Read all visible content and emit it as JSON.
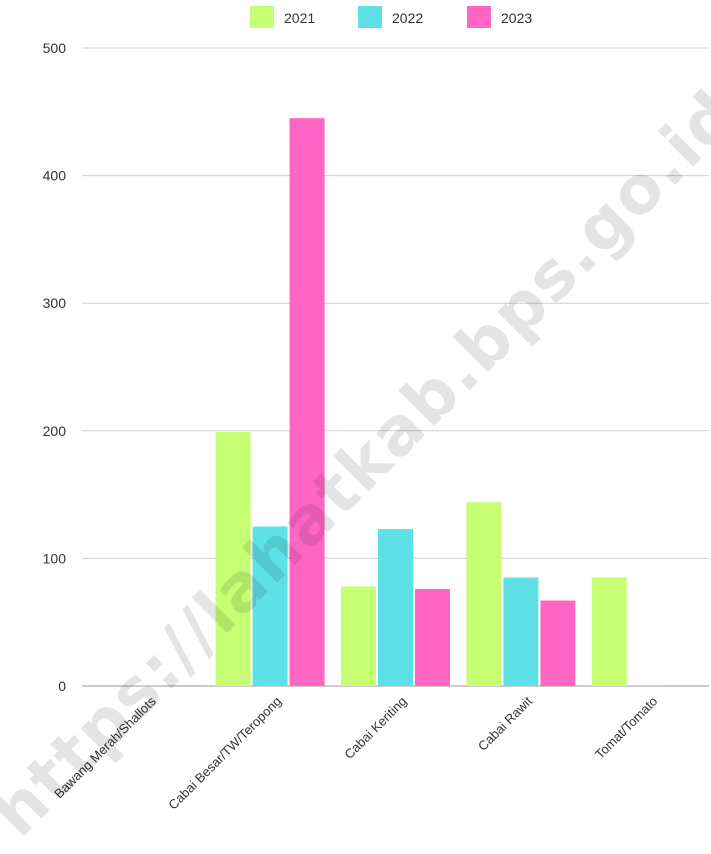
{
  "chart_data": {
    "type": "bar",
    "categories": [
      "Bawang Merah/Shallots",
      "Cabai Besar/TW/Teropong",
      "Cabai Keriting",
      "Cabai Rawit",
      "Tomat/Tomato"
    ],
    "series": [
      {
        "name": "2021",
        "color": "#c6ff73",
        "values": [
          0,
          199,
          78,
          144,
          85
        ]
      },
      {
        "name": "2022",
        "color": "#5de0e6",
        "values": [
          0.5,
          125,
          123,
          85,
          0.5
        ]
      },
      {
        "name": "2023",
        "color": "#ff66c4",
        "values": [
          0.5,
          445,
          76,
          67,
          0
        ]
      }
    ],
    "ylim": [
      0,
      500
    ],
    "yticks": [
      0,
      100,
      200,
      300,
      400,
      500
    ],
    "grid": true,
    "legend": "top-center"
  },
  "watermark": "https://lahatkab.bps.go.id"
}
